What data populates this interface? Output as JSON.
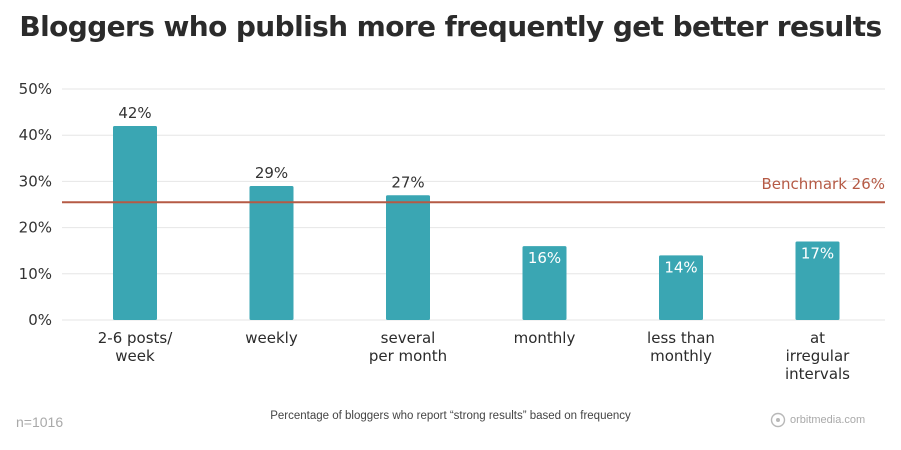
{
  "title": "Bloggers who publish more frequently get better results",
  "footer": {
    "sample": "n=1016",
    "caption": "Percentage of bloggers who report “strong results” based on frequency",
    "brand": "orbitmedia.com"
  },
  "chart_data": {
    "type": "bar",
    "categories": [
      [
        "2-6 posts/",
        "week"
      ],
      [
        "weekly"
      ],
      [
        "several",
        "per month"
      ],
      [
        "monthly"
      ],
      [
        "less than",
        "monthly"
      ],
      [
        "at",
        "irregular",
        "intervals"
      ]
    ],
    "values": [
      42,
      29,
      27,
      16,
      14,
      17
    ],
    "value_labels": [
      "42%",
      "29%",
      "27%",
      "16%",
      "14%",
      "17%"
    ],
    "y_ticks": [
      "0%",
      "10%",
      "20%",
      "30%",
      "40%",
      "50%"
    ],
    "ylim": [
      0,
      50
    ],
    "grid": true,
    "benchmark": {
      "value": 25.5,
      "label": "Benchmark 26%"
    },
    "colors": {
      "bar": "#3aa6b3",
      "benchmark": "#b55a45",
      "grid": "#e6e6e6",
      "label_above": "#333333",
      "label_inside": "#ffffff"
    }
  }
}
